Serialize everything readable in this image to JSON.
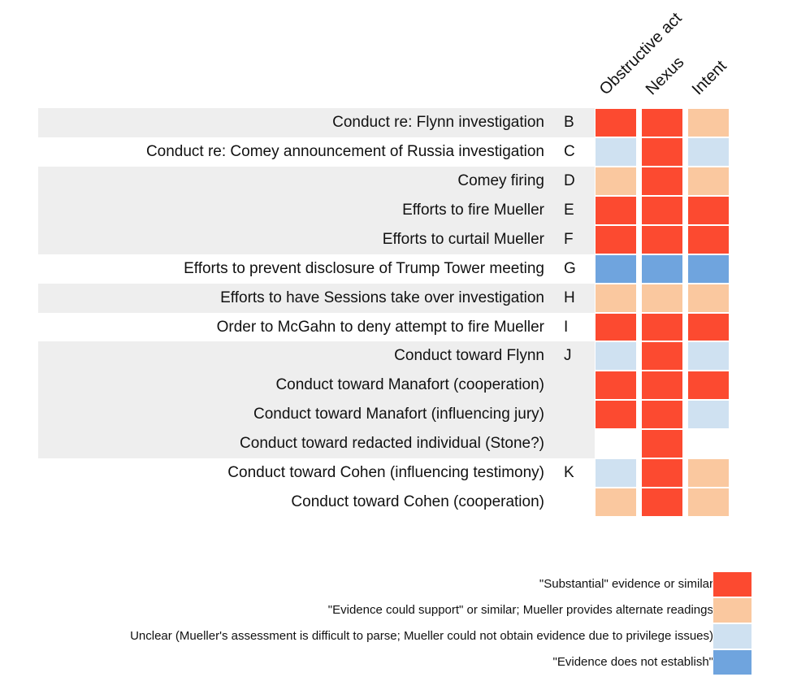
{
  "chart_data": {
    "type": "heatmap",
    "columns": [
      "Obstructive act",
      "Nexus",
      "Intent"
    ],
    "rows": [
      {
        "label": "Conduct re: Flynn investigation",
        "letter": "B",
        "values": [
          "substantial",
          "substantial",
          "could_support"
        ]
      },
      {
        "label": "Conduct re: Comey announcement of Russia investigation",
        "letter": "C",
        "values": [
          "unclear",
          "substantial",
          "unclear"
        ]
      },
      {
        "label": "Comey firing",
        "letter": "D",
        "values": [
          "could_support",
          "substantial",
          "could_support"
        ]
      },
      {
        "label": "Efforts to fire Mueller",
        "letter": "E",
        "values": [
          "substantial",
          "substantial",
          "substantial"
        ]
      },
      {
        "label": "Efforts to curtail Mueller",
        "letter": "F",
        "values": [
          "substantial",
          "substantial",
          "substantial"
        ]
      },
      {
        "label": "Efforts to prevent disclosure of Trump Tower meeting",
        "letter": "G",
        "values": [
          "not_establish",
          "not_establish",
          "not_establish"
        ]
      },
      {
        "label": "Efforts to have Sessions take over investigation",
        "letter": "H",
        "values": [
          "could_support",
          "could_support",
          "could_support"
        ]
      },
      {
        "label": "Order to McGahn to deny attempt to fire Mueller",
        "letter": "I",
        "values": [
          "substantial",
          "substantial",
          "substantial"
        ]
      },
      {
        "label": "Conduct toward Flynn",
        "letter": "J",
        "values": [
          "unclear",
          "substantial",
          "unclear"
        ]
      },
      {
        "label": "Conduct toward Manafort (cooperation)",
        "letter": "",
        "values": [
          "substantial",
          "substantial",
          "substantial"
        ]
      },
      {
        "label": "Conduct toward Manafort (influencing jury)",
        "letter": "",
        "values": [
          "substantial",
          "substantial",
          "unclear"
        ]
      },
      {
        "label": "Conduct toward redacted individual (Stone?)",
        "letter": "",
        "values": [
          "none",
          "substantial",
          "none"
        ]
      },
      {
        "label": "Conduct toward Cohen (influencing testimony)",
        "letter": "K",
        "values": [
          "unclear",
          "substantial",
          "could_support"
        ]
      },
      {
        "label": "Conduct toward Cohen (cooperation)",
        "letter": "",
        "values": [
          "could_support",
          "substantial",
          "could_support"
        ]
      }
    ],
    "shaded_row_groups": [
      [
        0,
        0
      ],
      [
        2,
        4
      ],
      [
        6,
        6
      ],
      [
        8,
        11
      ]
    ],
    "legend": [
      {
        "key": "substantial",
        "label": "\"Substantial\" evidence or similar",
        "color": "#fc4a30"
      },
      {
        "key": "could_support",
        "label": "\"Evidence could support\" or similar; Mueller provides alternate readings",
        "color": "#fac89f"
      },
      {
        "key": "unclear",
        "label": "Unclear (Mueller's assessment is difficult to parse; Mueller could not obtain evidence due to privilege issues)",
        "color": "#cfe1f1"
      },
      {
        "key": "not_establish",
        "label": "\"Evidence does not establish\"",
        "color": "#6fa4de"
      }
    ],
    "empty_color": "#ffffff"
  }
}
